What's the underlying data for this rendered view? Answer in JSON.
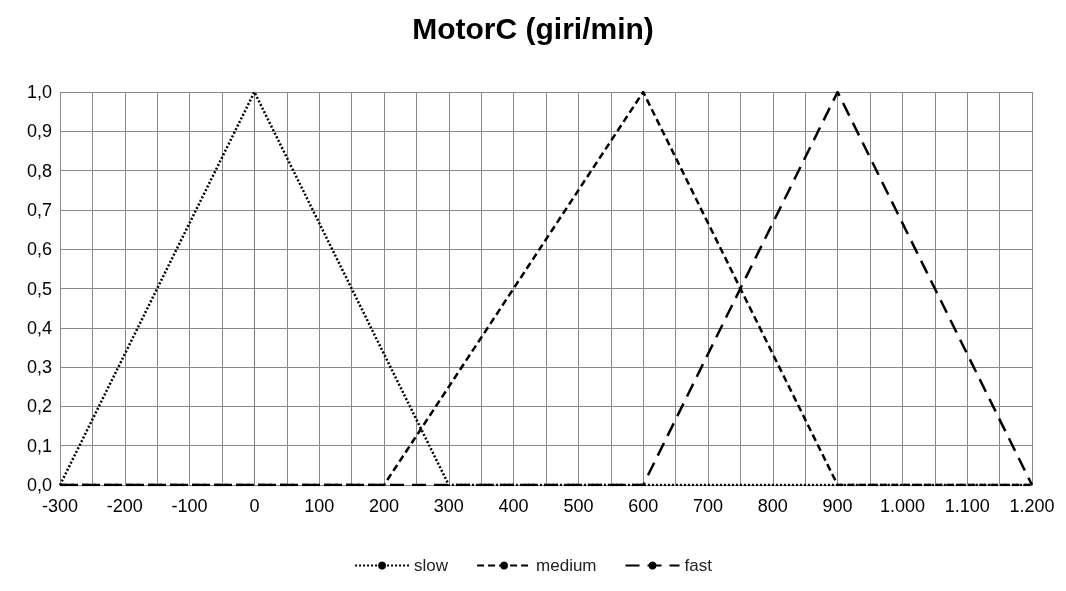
{
  "chart_data": {
    "type": "line",
    "title": "MotorC (giri/min)",
    "xlim": [
      -300,
      1200
    ],
    "xticks": [
      -300,
      {
        "value": -250,
        "label": null
      },
      -200,
      {
        "value": -150,
        "label": null
      },
      -100,
      {
        "value": -50,
        "label": null
      },
      0,
      {
        "value": 50,
        "label": null
      },
      100,
      {
        "value": 150,
        "label": null
      },
      200,
      {
        "value": 250,
        "label": null
      },
      300,
      {
        "value": 350,
        "label": null
      },
      400,
      {
        "value": 450,
        "label": null
      },
      500,
      {
        "value": 550,
        "label": null
      },
      600,
      {
        "value": 650,
        "label": null
      },
      700,
      {
        "value": 750,
        "label": null
      },
      800,
      {
        "value": 850,
        "label": null
      },
      900,
      {
        "value": 950,
        "label": null
      },
      {
        "value": 1000,
        "label": "1.000"
      },
      {
        "value": 1050,
        "label": null
      },
      {
        "value": 1100,
        "label": "1.100"
      },
      {
        "value": 1150,
        "label": null
      },
      {
        "value": 1200,
        "label": "1.200"
      }
    ],
    "ylim": [
      0,
      1
    ],
    "yticks": [
      {
        "value": 0,
        "label": "0,0"
      },
      {
        "value": 0.1,
        "label": "0,1"
      },
      {
        "value": 0.2,
        "label": "0,2"
      },
      {
        "value": 0.3,
        "label": "0,3"
      },
      {
        "value": 0.4,
        "label": "0,4"
      },
      {
        "value": 0.5,
        "label": "0,5"
      },
      {
        "value": 0.6,
        "label": "0,6"
      },
      {
        "value": 0.7,
        "label": "0,7"
      },
      {
        "value": 0.8,
        "label": "0,8"
      },
      {
        "value": 0.9,
        "label": "0,9"
      },
      {
        "value": 1,
        "label": "1,0"
      }
    ],
    "grid": true,
    "legend": "bottom",
    "marker": "none",
    "series": [
      {
        "name": "slow",
        "color": "#000000",
        "line_style": "dotted",
        "x": [
          -300,
          0,
          300,
          1200
        ],
        "values": [
          0,
          1,
          0,
          0
        ]
      },
      {
        "name": "medium",
        "color": "#000000",
        "line_style": "dashed",
        "x": [
          -300,
          200,
          600,
          900,
          1200
        ],
        "values": [
          0,
          0,
          1,
          0,
          0
        ]
      },
      {
        "name": "fast",
        "color": "#000000",
        "line_style": "dashed",
        "x": [
          -300,
          600,
          900,
          1200
        ],
        "values": [
          0,
          0,
          1,
          0
        ]
      }
    ]
  }
}
